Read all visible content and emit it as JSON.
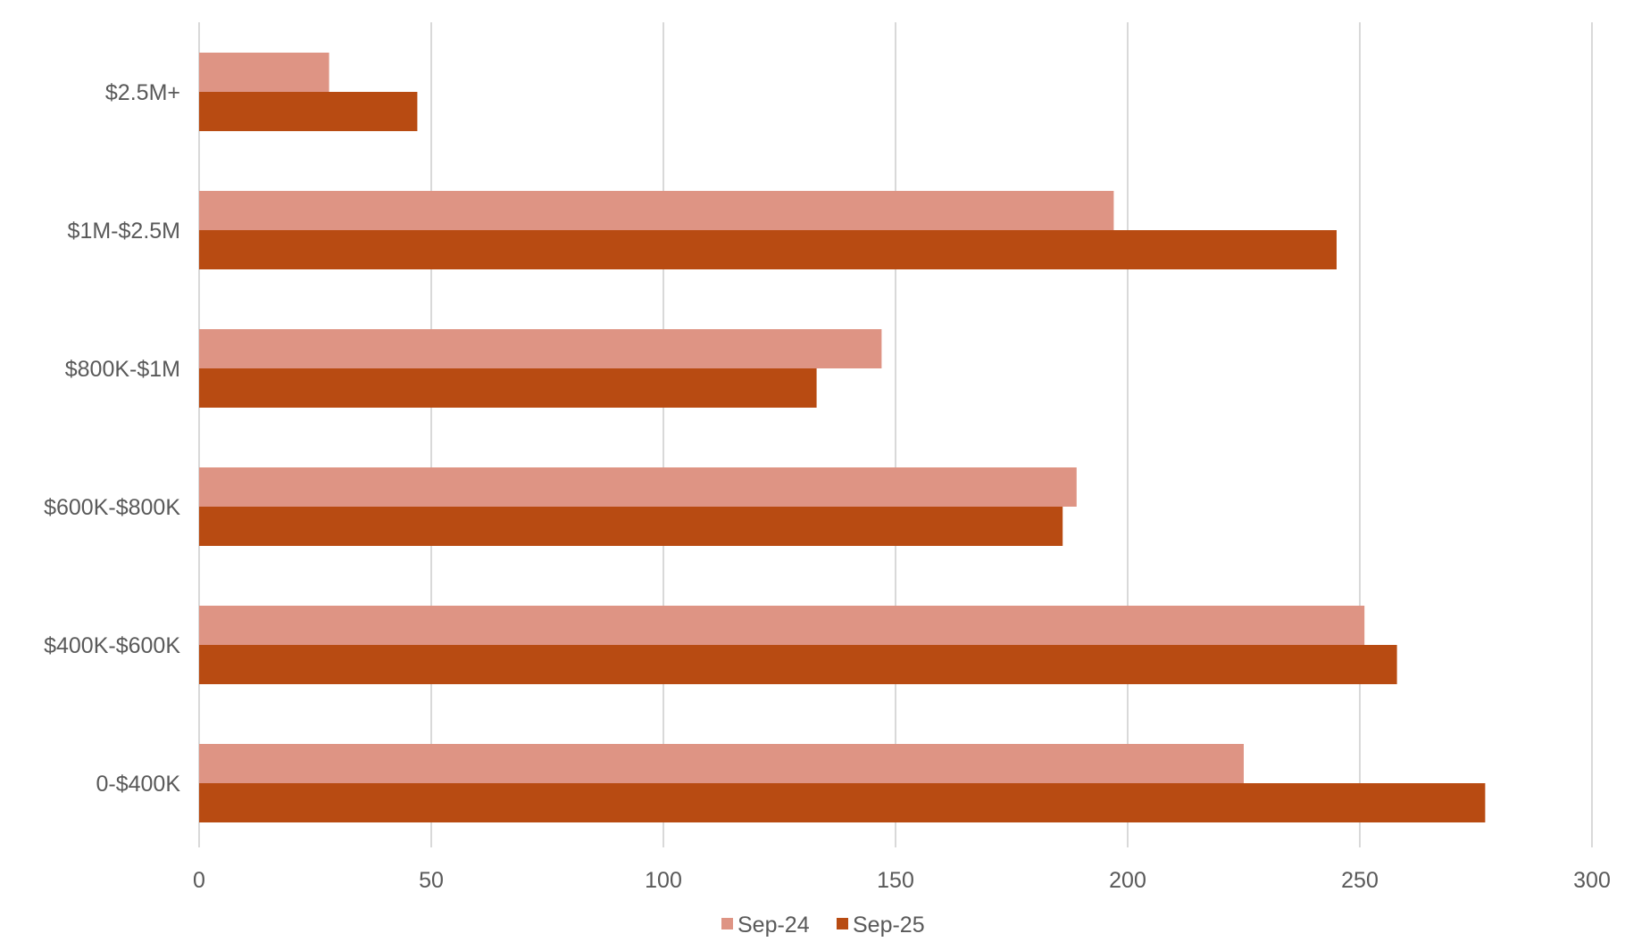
{
  "chart_data": {
    "type": "bar",
    "orientation": "horizontal",
    "categories": [
      "$2.5M+",
      "$1M-$2.5M",
      "$800K-$1M",
      "$600K-$800K",
      "$400K-$600K",
      "0-$400K"
    ],
    "series": [
      {
        "name": "Sep-24",
        "color": "#de9484",
        "values": [
          28,
          197,
          147,
          189,
          251,
          225
        ]
      },
      {
        "name": "Sep-25",
        "color": "#b84b12",
        "values": [
          47,
          245,
          133,
          186,
          258,
          277
        ]
      }
    ],
    "x_ticks": [
      "0",
      "50",
      "100",
      "150",
      "200",
      "250",
      "300"
    ],
    "xlim": [
      0,
      300
    ],
    "grid": "vertical",
    "legend_position": "bottom"
  }
}
